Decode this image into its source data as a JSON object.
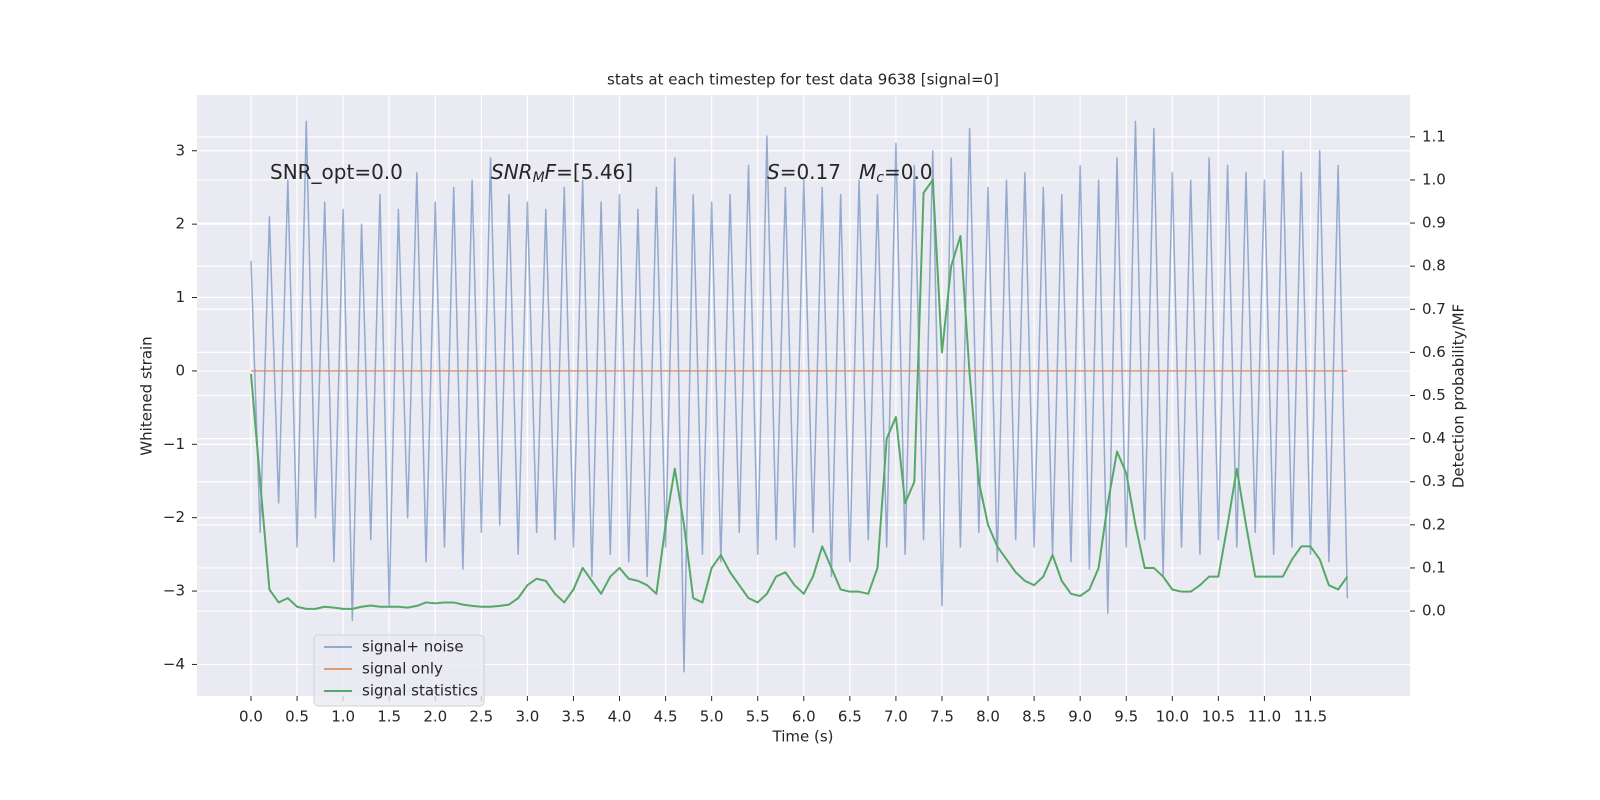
{
  "chart_data": {
    "type": "line",
    "title": "stats at each timestep for test data 9638 [signal=0]",
    "xlabel": "Time (s)",
    "ylabel": "Whitened strain",
    "y2label": "Detection probability/MF",
    "grid": true,
    "legend": "lower left",
    "xlim": [
      -0.586,
      12.58
    ],
    "ylim": [
      -4.43,
      3.76
    ],
    "y2lim": [
      -0.197,
      1.197
    ],
    "xticks": [
      {
        "value": 0,
        "label": "0.0"
      },
      0.5,
      {
        "value": 1,
        "label": "1.0"
      },
      1.5,
      {
        "value": 2,
        "label": "2.0"
      },
      2.5,
      {
        "value": 3,
        "label": "3.0"
      },
      3.5,
      {
        "value": 4,
        "label": "4.0"
      },
      4.5,
      {
        "value": 5,
        "label": "5.0"
      },
      5.5,
      {
        "value": 6,
        "label": "6.0"
      },
      6.5,
      {
        "value": 7,
        "label": "7.0"
      },
      7.5,
      {
        "value": 8,
        "label": "8.0"
      },
      8.5,
      {
        "value": 9,
        "label": "9.0"
      },
      9.5,
      {
        "value": 10,
        "label": "10.0"
      },
      10.5,
      {
        "value": 11,
        "label": "11.0"
      },
      11.5
    ],
    "yticks": [
      {
        "value": -4,
        "label": "−4"
      },
      {
        "value": -3,
        "label": "−3"
      },
      {
        "value": -2,
        "label": "−2"
      },
      {
        "value": -1,
        "label": "−1"
      },
      0,
      1,
      2,
      3
    ],
    "y2ticks": [
      {
        "value": 0,
        "label": "0.0"
      },
      0.1,
      0.2,
      0.3,
      0.4,
      0.5,
      0.6,
      0.7,
      0.8,
      0.9,
      {
        "value": 1,
        "label": "1.0"
      },
      1.1
    ],
    "annotations": [
      [
        {
          "text": "SNR_opt=0.0"
        }
      ],
      [
        {
          "text": "SNR",
          "italic": true
        },
        {
          "text": "M",
          "italic": true,
          "sub": true
        },
        {
          "text": "F",
          "italic": true
        },
        {
          "text": "=[5.46]"
        }
      ],
      [
        {
          "text": "S",
          "italic": true
        },
        {
          "text": "=0.17"
        }
      ],
      [
        {
          "text": "M",
          "italic": true
        },
        {
          "text": "c",
          "italic": true,
          "sub": true
        },
        {
          "text": "=0.0"
        }
      ]
    ],
    "x": [
      0,
      0.1,
      0.2,
      0.3,
      0.4,
      0.5,
      0.6,
      0.7,
      0.8,
      0.9,
      1,
      1.1,
      1.2,
      1.3,
      1.4,
      1.5,
      1.6,
      1.7,
      1.8,
      1.9,
      2,
      2.1,
      2.2,
      2.3,
      2.4,
      2.5,
      2.6,
      2.7,
      2.8,
      2.9,
      3,
      3.1,
      3.2,
      3.3,
      3.4,
      3.5,
      3.6,
      3.7,
      3.8,
      3.9,
      4,
      4.1,
      4.2,
      4.3,
      4.4,
      4.5,
      4.6,
      4.7,
      4.8,
      4.9,
      5,
      5.1,
      5.2,
      5.3,
      5.4,
      5.5,
      5.6,
      5.7,
      5.8,
      5.9,
      6,
      6.1,
      6.2,
      6.3,
      6.4,
      6.5,
      6.6,
      6.7,
      6.8,
      6.9,
      7,
      7.1,
      7.2,
      7.3,
      7.4,
      7.5,
      7.6,
      7.7,
      7.8,
      7.9,
      8,
      8.1,
      8.2,
      8.3,
      8.4,
      8.5,
      8.6,
      8.7,
      8.8,
      8.9,
      9,
      9.1,
      9.2,
      9.3,
      9.4,
      9.5,
      9.6,
      9.7,
      9.8,
      9.9,
      10,
      10.1,
      10.2,
      10.3,
      10.4,
      10.5,
      10.6,
      10.7,
      10.8,
      10.9,
      11,
      11.1,
      11.2,
      11.3,
      11.4,
      11.5,
      11.6,
      11.7,
      11.8,
      11.9
    ],
    "series": [
      {
        "name": "signal+ noise",
        "color": "#4c72b0",
        "alpha": 0.55,
        "axis": "y",
        "values": [
          1.5,
          -2.2,
          2.1,
          -1.8,
          2.6,
          -2.4,
          3.4,
          -2.0,
          2.3,
          -2.6,
          2.2,
          -3.4,
          2.0,
          -2.3,
          2.4,
          -3.2,
          2.2,
          -2.0,
          2.7,
          -2.6,
          2.3,
          -2.4,
          2.5,
          -2.7,
          2.6,
          -2.2,
          2.9,
          -2.1,
          2.4,
          -2.5,
          2.3,
          -2.2,
          2.2,
          -2.3,
          2.5,
          -2.4,
          2.6,
          -2.8,
          2.3,
          -2.5,
          2.4,
          -2.6,
          2.2,
          -2.8,
          2.5,
          -2.4,
          2.9,
          -4.1,
          2.4,
          -2.5,
          2.3,
          -2.6,
          2.4,
          -2.2,
          2.8,
          -2.5,
          3.2,
          -2.3,
          2.5,
          -2.4,
          2.6,
          -2.2,
          2.5,
          -2.8,
          2.4,
          -2.6,
          2.6,
          -2.3,
          2.4,
          -2.4,
          3.1,
          -2.5,
          2.8,
          -2.3,
          3.0,
          -3.2,
          2.9,
          -2.4,
          3.3,
          -2.2,
          2.5,
          -2.6,
          2.6,
          -2.3,
          2.7,
          -2.4,
          2.5,
          -2.5,
          2.4,
          -2.6,
          2.8,
          -2.7,
          2.6,
          -3.3,
          2.9,
          -2.4,
          3.4,
          -2.3,
          3.3,
          -2.8,
          2.7,
          -2.4,
          2.6,
          -2.5,
          2.9,
          -2.3,
          2.8,
          -2.4,
          2.7,
          -2.2,
          2.6,
          -2.5,
          3.0,
          -2.4,
          2.7,
          -2.5,
          3.0,
          -2.6,
          2.8,
          -3.1
        ]
      },
      {
        "name": "signal only",
        "color": "#dd8452",
        "alpha": 0.8,
        "axis": "y",
        "values": [
          0,
          0,
          0,
          0,
          0,
          0,
          0,
          0,
          0,
          0,
          0,
          0,
          0,
          0,
          0,
          0,
          0,
          0,
          0,
          0,
          0,
          0,
          0,
          0,
          0,
          0,
          0,
          0,
          0,
          0,
          0,
          0,
          0,
          0,
          0,
          0,
          0,
          0,
          0,
          0,
          0,
          0,
          0,
          0,
          0,
          0,
          0,
          0,
          0,
          0,
          0,
          0,
          0,
          0,
          0,
          0,
          0,
          0,
          0,
          0,
          0,
          0,
          0,
          0,
          0,
          0,
          0,
          0,
          0,
          0,
          0,
          0,
          0,
          0,
          0,
          0,
          0,
          0,
          0,
          0,
          0,
          0,
          0,
          0,
          0,
          0,
          0,
          0,
          0,
          0,
          0,
          0,
          0,
          0,
          0,
          0,
          0,
          0,
          0,
          0,
          0,
          0,
          0,
          0,
          0,
          0,
          0,
          0,
          0,
          0,
          0,
          0,
          0,
          0,
          0,
          0,
          0,
          0,
          0,
          0
        ]
      },
      {
        "name": "signal statistics",
        "color": "#55a868",
        "alpha": 1,
        "axis": "y2",
        "values": [
          0.55,
          0.3,
          0.05,
          0.02,
          0.03,
          0.01,
          0.005,
          0.005,
          0.01,
          0.008,
          0.005,
          0.005,
          0.01,
          0.013,
          0.01,
          0.01,
          0.01,
          0.008,
          0.012,
          0.02,
          0.018,
          0.02,
          0.02,
          0.015,
          0.012,
          0.01,
          0.01,
          0.012,
          0.015,
          0.03,
          0.06,
          0.075,
          0.07,
          0.04,
          0.02,
          0.05,
          0.1,
          0.07,
          0.04,
          0.08,
          0.1,
          0.075,
          0.07,
          0.06,
          0.04,
          0.2,
          0.33,
          0.2,
          0.03,
          0.02,
          0.1,
          0.13,
          0.09,
          0.06,
          0.03,
          0.02,
          0.04,
          0.08,
          0.09,
          0.06,
          0.04,
          0.08,
          0.15,
          0.1,
          0.05,
          0.045,
          0.045,
          0.04,
          0.1,
          0.4,
          0.45,
          0.25,
          0.3,
          0.97,
          1.0,
          0.6,
          0.8,
          0.87,
          0.55,
          0.3,
          0.2,
          0.15,
          0.12,
          0.09,
          0.07,
          0.06,
          0.08,
          0.13,
          0.07,
          0.04,
          0.035,
          0.05,
          0.1,
          0.25,
          0.37,
          0.32,
          0.2,
          0.1,
          0.1,
          0.08,
          0.05,
          0.045,
          0.045,
          0.06,
          0.08,
          0.08,
          0.2,
          0.33,
          0.2,
          0.08,
          0.08,
          0.08,
          0.08,
          0.12,
          0.15,
          0.15,
          0.12,
          0.06,
          0.05,
          0.08
        ]
      }
    ]
  }
}
